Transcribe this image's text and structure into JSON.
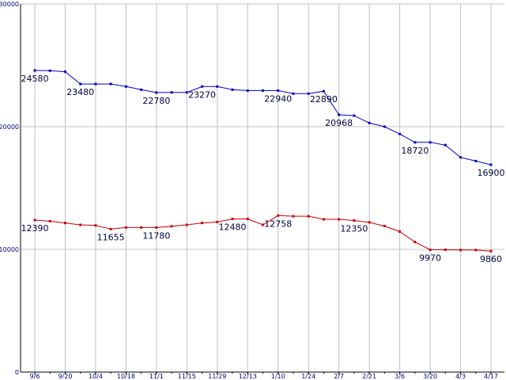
{
  "chart_data": {
    "type": "line",
    "x": [
      "9/6",
      "9/13",
      "9/20",
      "9/27",
      "10/4",
      "10/11",
      "10/18",
      "10/25",
      "11/1",
      "11/8",
      "11/15",
      "11/22",
      "11/29",
      "12/6",
      "12/13",
      "12/20",
      "1/10",
      "1/17",
      "1/24",
      "1/31",
      "2/7",
      "2/14",
      "2/21",
      "2/28",
      "3/6",
      "3/13",
      "3/20",
      "3/27",
      "4/3",
      "4/10",
      "4/17"
    ],
    "x_tick_labels": [
      "9/6",
      "9/20",
      "10/4",
      "10/18",
      "11/1",
      "11/15",
      "11/29",
      "12/13",
      "1/10",
      "1/24",
      "2/7",
      "2/21",
      "3/6",
      "3/20",
      "4/3",
      "4/17"
    ],
    "ylim": [
      0,
      30000
    ],
    "y_tick_labels": [
      "30000",
      "20000",
      "10000",
      "0"
    ],
    "grid": true,
    "series": [
      {
        "color": "#0000cc",
        "values": [
          24580,
          24560,
          24480,
          23480,
          23480,
          23480,
          23270,
          23010,
          22780,
          22790,
          22790,
          23270,
          23270,
          23010,
          22940,
          22940,
          22940,
          22690,
          22690,
          22890,
          20968,
          20900,
          20300,
          20000,
          19400,
          18720,
          18720,
          18500,
          17500,
          17200,
          16900
        ],
        "labels": [
          {
            "index": 0,
            "text": "24580"
          },
          {
            "index": 3,
            "text": "23480"
          },
          {
            "index": 8,
            "text": "22780"
          },
          {
            "index": 11,
            "text": "23270"
          },
          {
            "index": 16,
            "text": "22940"
          },
          {
            "index": 19,
            "text": "22890"
          },
          {
            "index": 20,
            "text": "20968"
          },
          {
            "index": 25,
            "text": "18720"
          },
          {
            "index": 30,
            "text": "16900"
          }
        ]
      },
      {
        "color": "#cc0000",
        "values": [
          12390,
          12300,
          12150,
          12000,
          11950,
          11655,
          11780,
          11780,
          11780,
          11880,
          12000,
          12150,
          12230,
          12480,
          12480,
          12000,
          12758,
          12700,
          12700,
          12450,
          12450,
          12350,
          12200,
          11900,
          11450,
          10600,
          9970,
          9970,
          9950,
          9950,
          9860
        ],
        "labels": [
          {
            "index": 0,
            "text": "12390"
          },
          {
            "index": 5,
            "text": "11655"
          },
          {
            "index": 8,
            "text": "11780"
          },
          {
            "index": 13,
            "text": "12480"
          },
          {
            "index": 16,
            "text": "12758"
          },
          {
            "index": 21,
            "text": "12350"
          },
          {
            "index": 26,
            "text": "9970"
          },
          {
            "index": 30,
            "text": "9860"
          }
        ]
      }
    ]
  }
}
